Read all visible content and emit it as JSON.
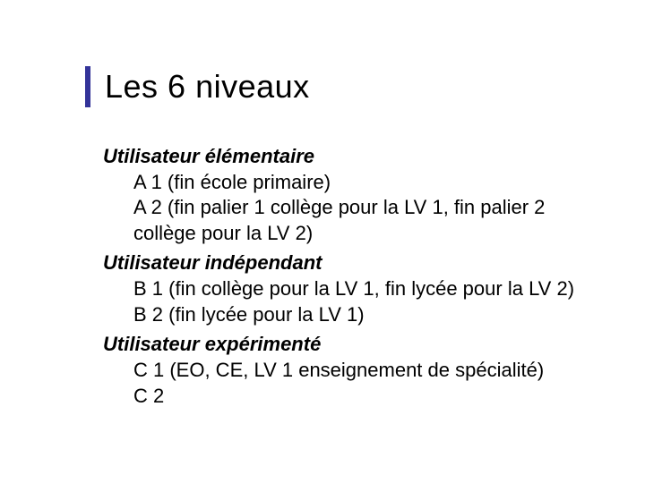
{
  "title": "Les 6 niveaux",
  "sections": {
    "s1": {
      "heading": "Utilisateur élémentaire",
      "i1": "A 1 (fin école primaire)",
      "i2": "A 2 (fin palier 1 collège pour la LV 1, fin palier 2 collège pour la LV 2)"
    },
    "s2": {
      "heading": "Utilisateur indépendant",
      "i1": "B 1 (fin collège pour la LV 1, fin lycée pour la LV 2)",
      "i2": "B 2 (fin lycée pour la LV 1)"
    },
    "s3": {
      "heading": "Utilisateur expérimenté",
      "i1": "C 1  (EO, CE, LV 1 enseignement de spécialité)",
      "i2": "C 2"
    }
  },
  "colors": {
    "accent": "#333399",
    "text": "#000000",
    "background": "#ffffff"
  },
  "typography": {
    "title_fontsize": 36,
    "body_fontsize": 22,
    "font_family": "Verdana"
  }
}
